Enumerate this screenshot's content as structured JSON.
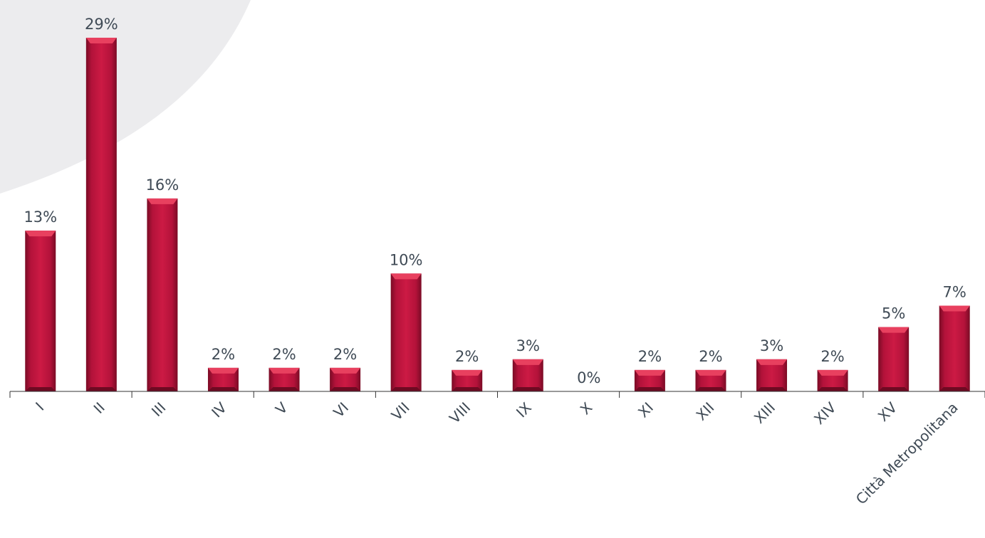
{
  "chart_data": {
    "type": "bar",
    "categories": [
      "I",
      "II",
      "III",
      "IV",
      "V",
      "VI",
      "VII",
      "VIII",
      "IX",
      "X",
      "XI",
      "XII",
      "XIII",
      "XIV",
      "XV",
      "Città Metropolitana"
    ],
    "values": [
      15,
      33,
      18,
      2.2,
      2.2,
      2.2,
      11,
      2,
      3,
      0,
      2,
      2,
      3,
      2,
      6,
      8
    ],
    "data_labels": [
      "13%",
      "29%",
      "16%",
      "2%",
      "2%",
      "2%",
      "10%",
      "2%",
      "3%",
      "0%",
      "2%",
      "2%",
      "3%",
      "2%",
      "5%",
      "7%"
    ],
    "title": "",
    "xlabel": "",
    "ylabel": "",
    "ylim": [
      0,
      33
    ],
    "grid": false,
    "legend": "none",
    "bar_color": "#c0143c",
    "bar_highlight_color": "#e8405f",
    "bar_shadow_color": "#6e0a22",
    "background_arc_color": "#ececee",
    "text_color": "#3f4a55",
    "axis_color": "#333333"
  }
}
